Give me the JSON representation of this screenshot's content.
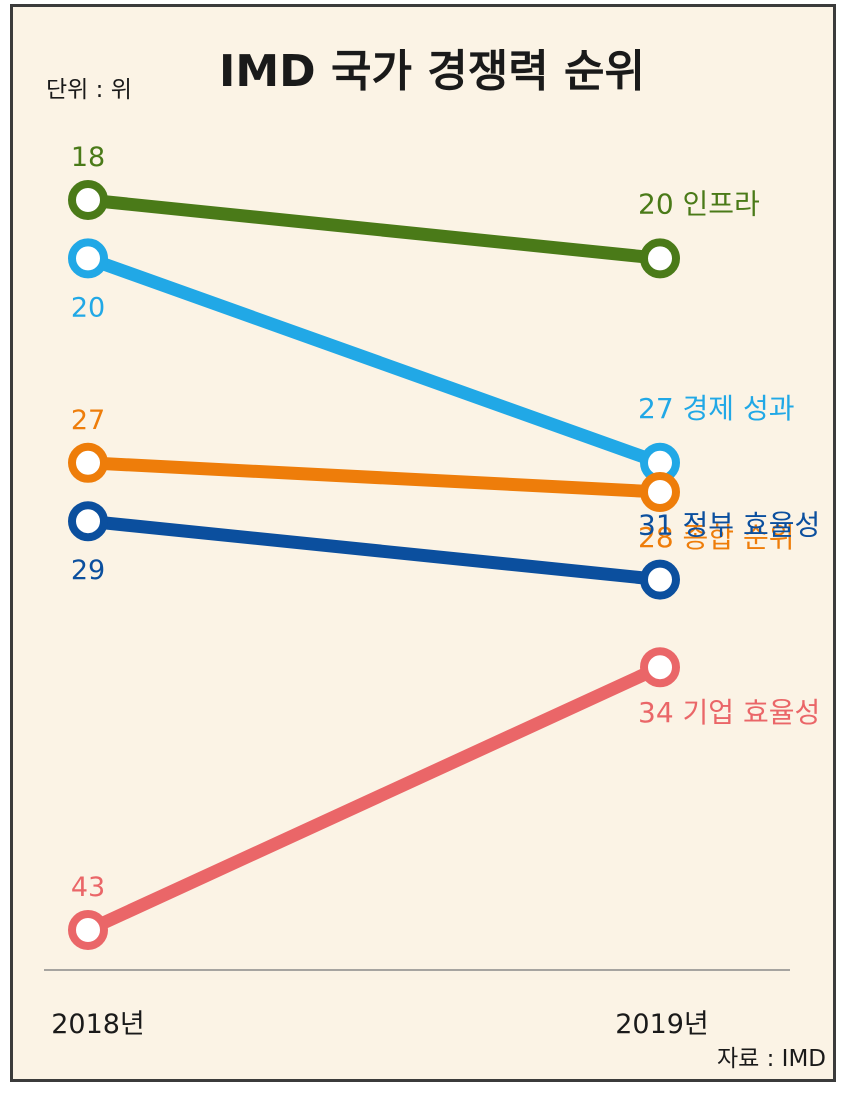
{
  "title": "IMD 국가 경쟁력 순위",
  "unit_label": "단위 : 위",
  "source_label": "자료 : IMD",
  "chart_data": {
    "type": "line",
    "title": "IMD 국가 경쟁력 순위",
    "categories": [
      "2018년",
      "2019년"
    ],
    "y_reversed": true,
    "ylim": [
      16,
      45
    ],
    "grid": false,
    "series": [
      {
        "name": "인프라",
        "values": [
          18,
          20
        ],
        "color": "#4a7a18",
        "start_label": "18",
        "end_label": "20 인프라"
      },
      {
        "name": "경제 성과",
        "values": [
          20,
          27
        ],
        "color": "#21a8e6",
        "start_label": "20",
        "end_label": "27 경제 성과"
      },
      {
        "name": "종합 순위",
        "values": [
          27,
          28
        ],
        "color": "#ee7d0a",
        "start_label": "27",
        "end_label": "28 종합 순위"
      },
      {
        "name": "정부 효율성",
        "values": [
          29,
          31
        ],
        "color": "#0b4f9e",
        "start_label": "29",
        "end_label": "31 정부 효율성"
      },
      {
        "name": "기업 효율성",
        "values": [
          43,
          34
        ],
        "color": "#ea6668",
        "start_label": "43",
        "end_label": "34 기업 효율성"
      }
    ]
  }
}
